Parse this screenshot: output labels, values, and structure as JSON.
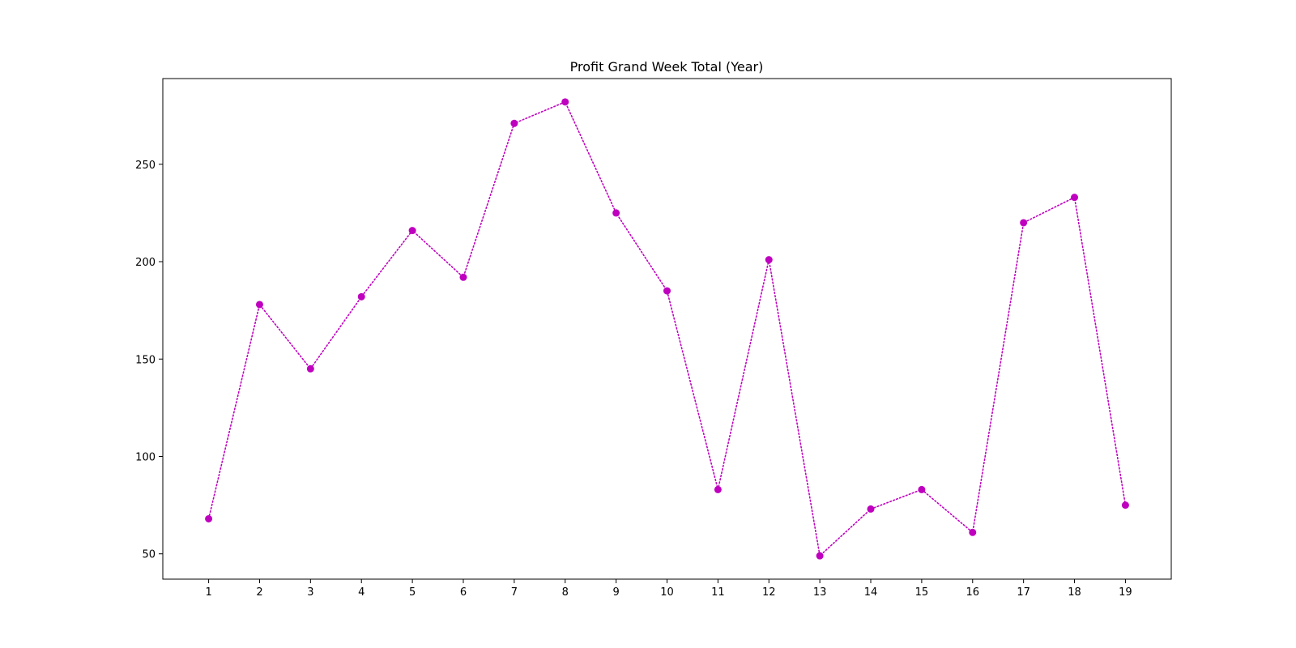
{
  "chart_data": {
    "type": "line",
    "title": "Profit Grand Week Total (Year)",
    "xlabel": "",
    "ylabel": "",
    "x": [
      1,
      2,
      3,
      4,
      5,
      6,
      7,
      8,
      9,
      10,
      11,
      12,
      13,
      14,
      15,
      16,
      17,
      18,
      19
    ],
    "x_ticks": [
      "1",
      "2",
      "3",
      "4",
      "5",
      "6",
      "7",
      "8",
      "9",
      "10",
      "11",
      "12",
      "13",
      "14",
      "15",
      "16",
      "17",
      "18",
      "19"
    ],
    "xlim": [
      0.1,
      19.9
    ],
    "y_ticks": [
      50,
      100,
      150,
      200,
      250
    ],
    "y_tick_labels": [
      "50",
      "100",
      "150",
      "200",
      "250"
    ],
    "ylim": [
      37,
      294
    ],
    "grid": false,
    "legend": "none",
    "series": [
      {
        "color": "#bf00bf",
        "line_style": "dotted",
        "marker": "circle",
        "values": [
          68,
          178,
          145,
          182,
          216,
          192,
          271,
          282,
          225,
          185,
          83,
          201,
          49,
          73,
          83,
          61,
          220,
          233,
          75
        ]
      }
    ]
  }
}
